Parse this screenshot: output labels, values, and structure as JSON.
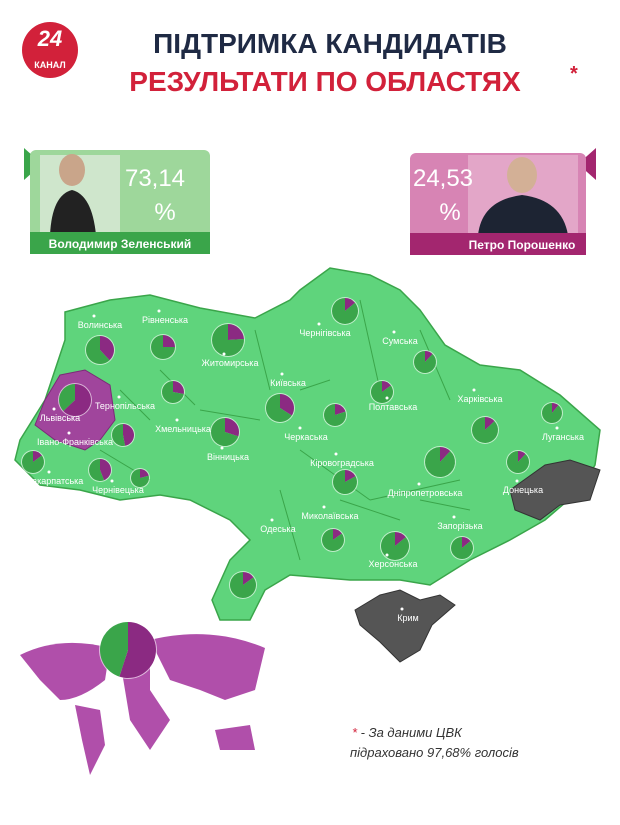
{
  "header": {
    "logo_number": "24",
    "logo_word": "КАНАЛ",
    "title_line1": "ПІДТРИМКА КАНДИДАТІВ",
    "title_line2": "РЕЗУЛЬТАТИ ПО ОБЛАСТЯХ",
    "title_mark": "*"
  },
  "candidates": [
    {
      "name": "Володимир Зеленський",
      "percent": "73,14",
      "unit": "%",
      "color": "#3aa54a"
    },
    {
      "name": "Петро Порошенко",
      "percent": "24,53",
      "unit": "%",
      "color": "#a3266f"
    }
  ],
  "regions": [
    {
      "name": "Волинська",
      "share": 62
    },
    {
      "name": "Рівненська",
      "share": 75
    },
    {
      "name": "Житомирська",
      "share": 76
    },
    {
      "name": "Чернігівська",
      "share": 86
    },
    {
      "name": "Сумська",
      "share": 88
    },
    {
      "name": "Київська",
      "share": 66
    },
    {
      "name": "Полтавська",
      "share": 85
    },
    {
      "name": "Харківська",
      "share": 87
    },
    {
      "name": "Луганська",
      "share": 89
    },
    {
      "name": "Львівська",
      "share": 37
    },
    {
      "name": "Тернопільська",
      "share": 53
    },
    {
      "name": "Хмельницька",
      "share": 72
    },
    {
      "name": "Вінницька",
      "share": 70
    },
    {
      "name": "Черкаська",
      "share": 80
    },
    {
      "name": "Кіровоградська",
      "share": 83
    },
    {
      "name": "Івано-Франківська",
      "share": 56
    },
    {
      "name": "Закарпатська",
      "share": 85
    },
    {
      "name": "Чернівецька",
      "share": 79
    },
    {
      "name": "Донецька",
      "share": 88
    },
    {
      "name": "Дніпропетровська",
      "share": 88
    },
    {
      "name": "Запорізька",
      "share": 86
    },
    {
      "name": "Миколаївська",
      "share": 85
    },
    {
      "name": "Одеська",
      "share": 85
    },
    {
      "name": "Херсонська",
      "share": 86
    },
    {
      "name": "Крим",
      "share": null
    }
  ],
  "abroad_share": 45,
  "footnote": {
    "mark": "*",
    "line1": " - За даними ЦВК",
    "line2": "підраховано 97,68% голосів"
  }
}
